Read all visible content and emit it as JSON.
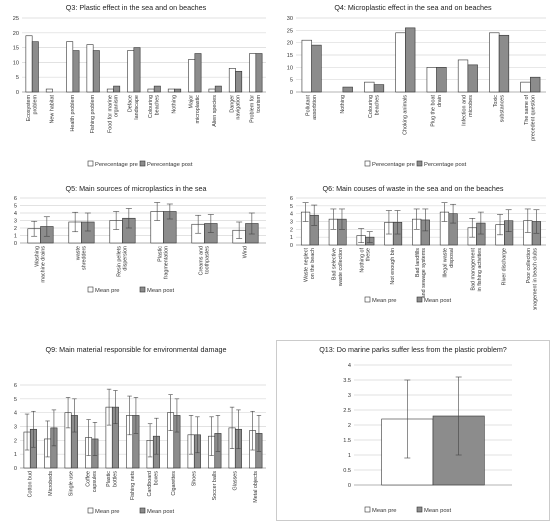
{
  "colors": {
    "pre": "#ffffff",
    "post": "#8c8c8c",
    "stroke": "#333333",
    "grid": "#d9d9d9"
  },
  "chart_data": [
    {
      "id": "q3",
      "type": "bar",
      "title": "Q3: Plastic effect in the sea and on beaches",
      "ylim": [
        0,
        25
      ],
      "yticks": [
        0,
        5,
        10,
        15,
        20,
        25
      ],
      "grid": true,
      "legend": "bottom",
      "categories": [
        "Ecosystem problem",
        "New habitat",
        "Health problem",
        "Fishing problem",
        "Food for marine organism",
        "Deface landscape",
        "Colouring beaches",
        "Nothing",
        "Major microplastic",
        "Alien species",
        "Danger navigation",
        "Problem for tourism"
      ],
      "series": [
        {
          "name": "Perecentage pre",
          "values": [
            19,
            1,
            17,
            16,
            1,
            14,
            1,
            1,
            11,
            1,
            8,
            13
          ]
        },
        {
          "name": "Perecentage post",
          "values": [
            17,
            0,
            14,
            14,
            2,
            15,
            2,
            1,
            13,
            2,
            7,
            13
          ]
        }
      ]
    },
    {
      "id": "q4",
      "type": "bar",
      "title": "Q4: Microplastic effect in the sea and on beaches",
      "ylim": [
        0,
        30
      ],
      "yticks": [
        0,
        5,
        10,
        15,
        20,
        25,
        30
      ],
      "grid": true,
      "legend": "bottom",
      "categories": [
        "Pollutant assorbtion",
        "Nothing",
        "Colouring beaches",
        "Choking animals",
        "Plug the boat drain",
        "Infection and microbes",
        "Toxic substances",
        "The same of precedent question"
      ],
      "series": [
        {
          "name": "Perecentage pre",
          "values": [
            21,
            0,
            4,
            24,
            10,
            13,
            24,
            4
          ]
        },
        {
          "name": "Percentage post",
          "values": [
            19,
            2,
            3,
            26,
            10,
            11,
            23,
            6
          ]
        }
      ]
    },
    {
      "id": "q5",
      "type": "bar",
      "title": "Q5: Main sources of microplastics in the sea",
      "ylim": [
        0,
        6
      ],
      "yticks": [
        0,
        1,
        2,
        3,
        4,
        5,
        6
      ],
      "grid": true,
      "legend": "bottom",
      "categories": [
        "Washing machine drains",
        "waste shredders",
        "Resin pellets dispersion",
        "Plastic fragmentation",
        "Creams and toothpastes",
        "Wind"
      ],
      "series": [
        {
          "name": "Mean pre",
          "values": [
            1.9,
            2.8,
            3.0,
            4.2,
            2.5,
            1.7
          ],
          "errors": [
            1.0,
            1.3,
            1.2,
            1.2,
            1.2,
            1.1
          ]
        },
        {
          "name": "Mean post",
          "values": [
            2.2,
            2.8,
            3.3,
            4.2,
            2.6,
            2.6
          ],
          "errors": [
            1.3,
            1.2,
            1.3,
            1.0,
            1.2,
            1.4
          ]
        }
      ]
    },
    {
      "id": "q6",
      "type": "bar",
      "title": "Q6: Main couses of waste in the sea and on the beaches",
      "ylim": [
        0,
        6
      ],
      "yticks": [
        0,
        1,
        2,
        3,
        4,
        5,
        6
      ],
      "grid": true,
      "legend": "bottom",
      "categories": [
        "Waste neglect on the beach",
        "Bad selective waste collection",
        "Nothing of these",
        "Not enough bin",
        "Bad landfills and sewage systems",
        "Illegal waste disposal",
        "Bad management in fishing activities",
        "River discharge",
        "Poor collection management in beach clubs"
      ],
      "series": [
        {
          "name": "Mean pre",
          "values": [
            4.2,
            3.3,
            1.2,
            2.9,
            3.3,
            4.2,
            2.2,
            2.6,
            3.1
          ],
          "errors": [
            1.2,
            1.3,
            0.9,
            1.5,
            1.3,
            1.2,
            1.2,
            1.3,
            1.5
          ]
        },
        {
          "name": "Mean post",
          "values": [
            3.8,
            3.3,
            1.0,
            2.9,
            3.2,
            4.0,
            2.8,
            3.1,
            3.0
          ],
          "errors": [
            1.3,
            1.3,
            0.7,
            1.5,
            1.4,
            1.2,
            1.4,
            1.4,
            1.5
          ]
        }
      ]
    },
    {
      "id": "q9",
      "type": "bar",
      "title": "Q9: Main material responsible for environmental damage",
      "ylim": [
        0,
        6
      ],
      "yticks": [
        0,
        1,
        2,
        3,
        4,
        5,
        6
      ],
      "grid": true,
      "legend": "bottom",
      "categories": [
        "Cotton bud",
        "Microbeds",
        "Single use",
        "Coffee capsules",
        "Plastic bottles",
        "Fishing nets",
        "Cardboard boxes",
        "Cigarettes",
        "Shoes",
        "Soccer balls",
        "Glasses",
        "Metal objects"
      ],
      "series": [
        {
          "name": "Mean pre",
          "values": [
            2.6,
            2.1,
            4.0,
            2.2,
            4.4,
            3.8,
            2.0,
            4.0,
            2.4,
            2.3,
            2.9,
            2.7
          ],
          "errors": [
            1.3,
            1.3,
            1.1,
            1.3,
            1.3,
            1.4,
            1.2,
            1.3,
            1.4,
            1.4,
            1.5,
            1.4
          ]
        },
        {
          "name": "Mean post",
          "values": [
            2.8,
            2.9,
            3.8,
            2.1,
            4.4,
            3.8,
            2.3,
            3.8,
            2.4,
            2.5,
            2.8,
            2.5
          ],
          "errors": [
            1.3,
            1.3,
            1.2,
            1.2,
            1.2,
            1.3,
            1.3,
            1.2,
            1.3,
            1.3,
            1.4,
            1.3
          ]
        }
      ]
    },
    {
      "id": "q13",
      "type": "bar",
      "title": "Q13: Do marine parks suffer less from the plastic problem?",
      "ylim": [
        0,
        4
      ],
      "yticks": [
        0,
        0.5,
        1,
        1.5,
        2,
        2.5,
        3,
        3.5,
        4
      ],
      "grid": true,
      "legend": "bottom",
      "categories": [
        ""
      ],
      "series": [
        {
          "name": "Mean pre",
          "values": [
            2.2
          ],
          "errors": [
            1.3
          ]
        },
        {
          "name": "Mean post",
          "values": [
            2.3
          ],
          "errors": [
            1.3
          ]
        }
      ]
    }
  ]
}
